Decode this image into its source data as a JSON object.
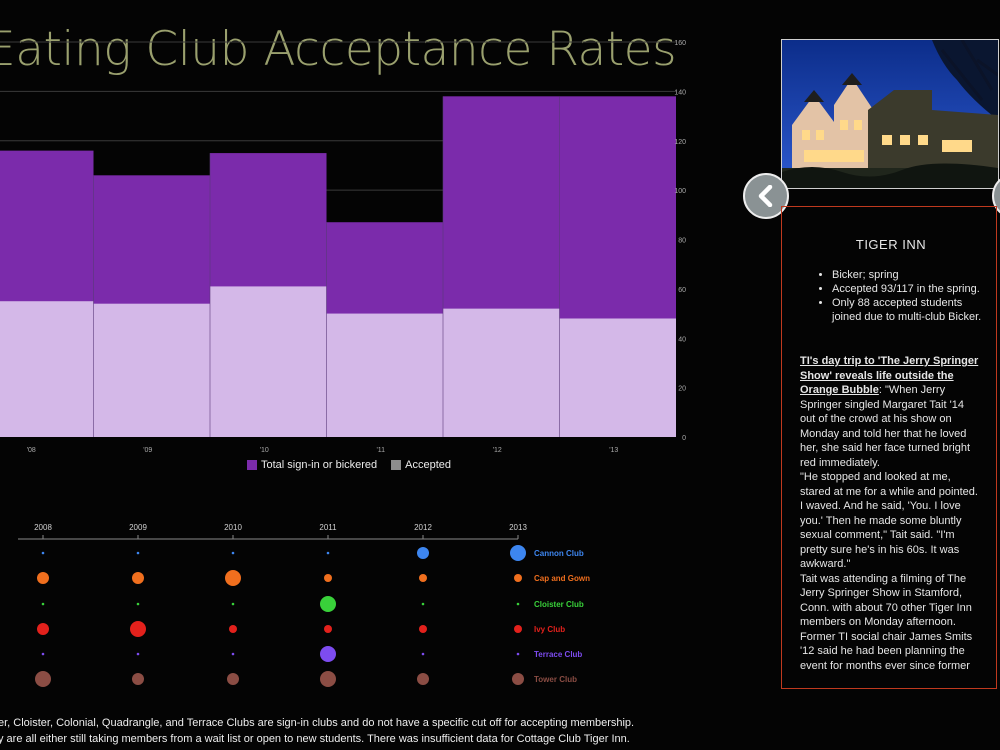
{
  "title": "Eating Club Acceptance Rates",
  "chart_data": [
    {
      "type": "bar",
      "stacked": false,
      "overlapping": true,
      "categories": [
        "'08",
        "'09",
        "'10",
        "'11",
        "'12",
        "'13"
      ],
      "series": [
        {
          "name": "Total sign-in or bickered",
          "color": "#7b2bab",
          "values": [
            116,
            106,
            115,
            87,
            138,
            138
          ]
        },
        {
          "name": "Accepted",
          "color": "#d4b8e8",
          "values": [
            55,
            54,
            61,
            50,
            52,
            48
          ]
        }
      ],
      "yticks": [
        0,
        20,
        40,
        60,
        80,
        100,
        120,
        140,
        160
      ],
      "ylim": [
        0,
        160
      ],
      "grid": true,
      "y_axis_side": "right",
      "legend": "bottom"
    },
    {
      "type": "scatter",
      "subtype": "bubble",
      "years": [
        "2008",
        "2009",
        "2010",
        "2011",
        "2012",
        "2013"
      ],
      "series": [
        {
          "name": "Cannon Club",
          "color": "#3d86f0",
          "sizes": [
            1,
            1,
            1,
            1,
            3,
            4
          ]
        },
        {
          "name": "Cap and Gown",
          "color": "#f06f1e",
          "sizes": [
            3,
            3,
            4,
            2,
            2,
            2
          ]
        },
        {
          "name": "Cloister Club",
          "color": "#39d13a",
          "sizes": [
            1,
            1,
            1,
            4,
            1,
            1
          ]
        },
        {
          "name": "Ivy Club",
          "color": "#e3211c",
          "sizes": [
            3,
            4,
            2,
            2,
            2,
            2
          ]
        },
        {
          "name": "Terrace Club",
          "color": "#7d4cf0",
          "sizes": [
            1,
            1,
            1,
            4,
            1,
            1
          ]
        },
        {
          "name": "Tower Club",
          "color": "#8b4d44",
          "sizes": [
            4,
            3,
            3,
            4,
            3,
            3
          ]
        }
      ]
    }
  ],
  "footnote": {
    "line1": "er, Cloister, Colonial, Quadrangle, and Terrace Clubs are sign-in clubs and do not have a specific cut off for accepting membership.",
    "line2": "y are all either still taking members from a wait list or open to new students. There was insufficient data for Cottage Club Tiger Inn."
  },
  "panel": {
    "club_name": "TIGER INN",
    "facts": [
      "Bicker; spring",
      "Accepted 93/117 in the spring.",
      "Only 88 accepted students joined due to multi-club Bicker."
    ],
    "article_headline": "TI's day trip to 'The Jerry Springer Show' reveals life outside the Orange Bubble",
    "article_intro": ": \"When Jerry Springer singled Margaret Tait '14 out of the crowd at his show on Monday and told her that he loved her, she said her face turned bright red immediately.",
    "article_p2": "\"He stopped and looked at me, stared at me for a while and pointed. I waved. And he said, 'You. I love you.' Then he made some bluntly sexual comment,\" Tait said. \"I'm pretty sure he's in his 60s. It was awkward.\"",
    "article_p3": "Tait was attending a filming of The Jerry Springer Show in Stamford, Conn. with about 70 other Tiger Inn members on Monday afternoon. Former TI social chair James Smits '12 said he had been planning the event for months ever since former"
  },
  "icons": {
    "prev": "chevron-left-icon",
    "next": "chevron-right-icon",
    "photo": "tiger-inn-photo"
  }
}
